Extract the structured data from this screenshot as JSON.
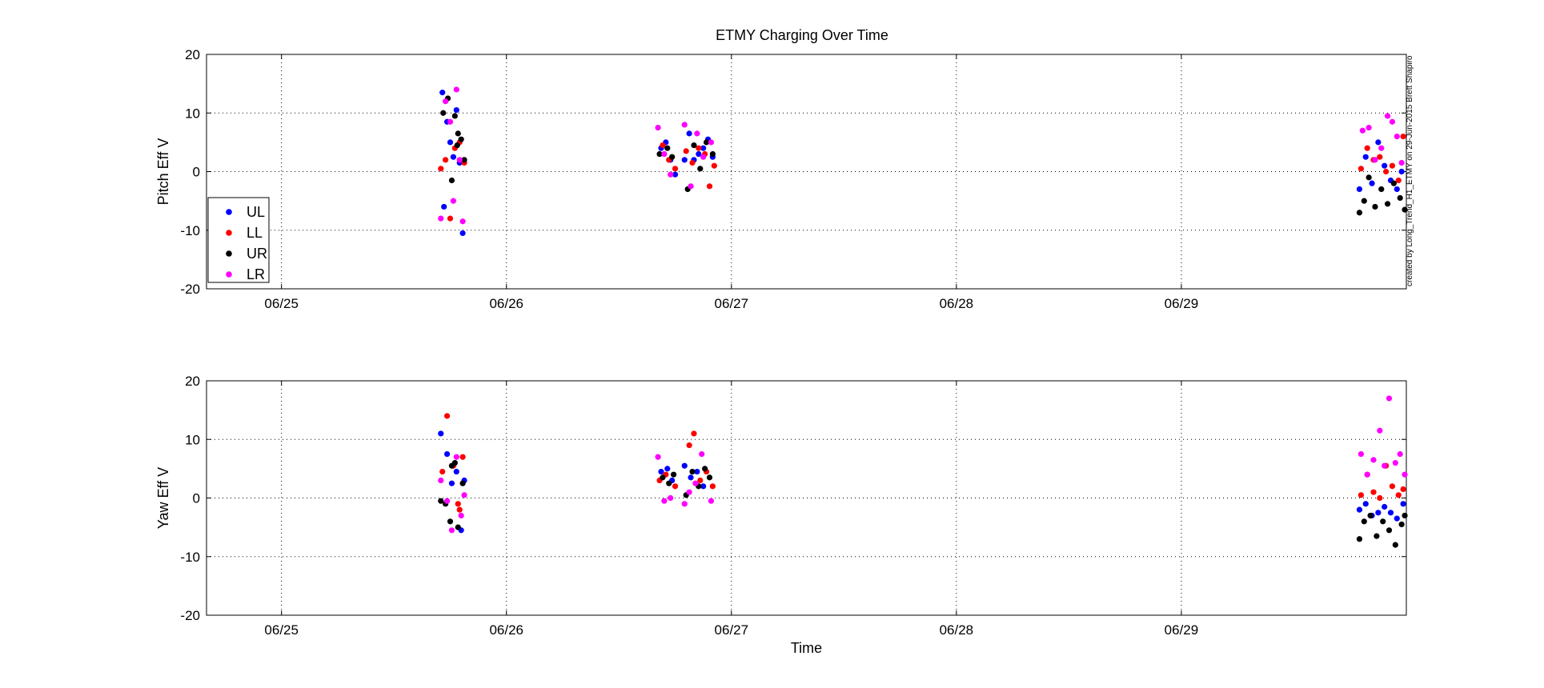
{
  "chart_data": [
    {
      "type": "scatter",
      "title": "ETMY Charging Over Time",
      "xlabel": "",
      "ylabel": "Pitch Eff V",
      "ylim": [
        -20,
        20
      ],
      "yticks": [
        -20,
        -10,
        0,
        10,
        20
      ],
      "xlim": [
        "06/24 16:00",
        "06/30 00:00"
      ],
      "xticks": [
        "06/25",
        "06/26",
        "06/27",
        "06/28",
        "06/29"
      ],
      "grid": true,
      "legend_placement": "lower-left",
      "credit": "created by Long_Trend_H1_ETMY on 29-Jun-2015 Brett Shapiro",
      "series": [
        {
          "name": "UL",
          "color": "#0000ff",
          "points": [
            [
              "06/25 17:10",
              13.5
            ],
            [
              "06/25 17:20",
              -6.0
            ],
            [
              "06/25 17:40",
              8.5
            ],
            [
              "06/25 18:00",
              5.0
            ],
            [
              "06/25 18:20",
              2.5
            ],
            [
              "06/25 18:40",
              10.5
            ],
            [
              "06/25 19:00",
              1.5
            ],
            [
              "06/25 19:20",
              -10.5
            ],
            [
              "06/26 16:30",
              4.0
            ],
            [
              "06/26 17:00",
              5.0
            ],
            [
              "06/26 17:30",
              2.0
            ],
            [
              "06/26 18:00",
              -0.5
            ],
            [
              "06/26 19:00",
              2.0
            ],
            [
              "06/26 19:30",
              6.5
            ],
            [
              "06/26 20:00",
              2.0
            ],
            [
              "06/26 20:30",
              3.0
            ],
            [
              "06/26 21:00",
              4.0
            ],
            [
              "06/26 21:30",
              5.5
            ],
            [
              "06/26 22:00",
              2.5
            ],
            [
              "06/29 19:00",
              -3.0
            ],
            [
              "06/29 19:40",
              2.5
            ],
            [
              "06/29 20:20",
              -2.0
            ],
            [
              "06/29 21:00",
              5.0
            ],
            [
              "06/29 21:40",
              1.0
            ],
            [
              "06/29 22:20",
              -1.5
            ],
            [
              "06/29 23:00",
              -3.0
            ],
            [
              "06/29 23:30",
              0.0
            ]
          ]
        },
        {
          "name": "LL",
          "color": "#ff0000",
          "points": [
            [
              "06/25 17:00",
              0.5
            ],
            [
              "06/25 17:30",
              2.0
            ],
            [
              "06/25 18:00",
              -8.0
            ],
            [
              "06/25 18:30",
              4.0
            ],
            [
              "06/25 19:00",
              5.0
            ],
            [
              "06/25 19:30",
              1.5
            ],
            [
              "06/26 16:40",
              4.5
            ],
            [
              "06/26 17:20",
              2.0
            ],
            [
              "06/26 18:00",
              0.5
            ],
            [
              "06/26 19:10",
              3.5
            ],
            [
              "06/26 19:50",
              1.5
            ],
            [
              "06/26 20:30",
              4.0
            ],
            [
              "06/26 21:10",
              3.0
            ],
            [
              "06/26 21:40",
              -2.5
            ],
            [
              "06/26 22:10",
              1.0
            ],
            [
              "06/29 19:10",
              0.5
            ],
            [
              "06/29 19:50",
              4.0
            ],
            [
              "06/29 20:30",
              2.0
            ],
            [
              "06/29 21:10",
              2.5
            ],
            [
              "06/29 21:50",
              0.0
            ],
            [
              "06/29 22:30",
              1.0
            ],
            [
              "06/29 23:10",
              -1.5
            ],
            [
              "06/29 23:40",
              6.0
            ]
          ]
        },
        {
          "name": "UR",
          "color": "#000000",
          "points": [
            [
              "06/25 17:15",
              10.0
            ],
            [
              "06/25 17:45",
              12.5
            ],
            [
              "06/25 18:10",
              -1.5
            ],
            [
              "06/25 18:30",
              9.5
            ],
            [
              "06/25 18:50",
              6.5
            ],
            [
              "06/25 19:10",
              5.5
            ],
            [
              "06/25 19:30",
              2.0
            ],
            [
              "06/25 18:45",
              4.5
            ],
            [
              "06/26 16:20",
              3.0
            ],
            [
              "06/26 17:10",
              4.0
            ],
            [
              "06/26 17:40",
              2.5
            ],
            [
              "06/26 19:20",
              -3.0
            ],
            [
              "06/26 20:00",
              4.5
            ],
            [
              "06/26 20:40",
              0.5
            ],
            [
              "06/26 21:20",
              5.0
            ],
            [
              "06/26 22:00",
              3.0
            ],
            [
              "06/29 19:00",
              -7.0
            ],
            [
              "06/29 19:30",
              -5.0
            ],
            [
              "06/29 20:00",
              -1.0
            ],
            [
              "06/29 20:40",
              -6.0
            ],
            [
              "06/29 21:20",
              -3.0
            ],
            [
              "06/29 22:00",
              -5.5
            ],
            [
              "06/29 22:40",
              -2.0
            ],
            [
              "06/29 23:20",
              -4.5
            ],
            [
              "06/29 23:50",
              -6.5
            ]
          ]
        },
        {
          "name": "LR",
          "color": "#ff00ff",
          "points": [
            [
              "06/25 17:00",
              -8.0
            ],
            [
              "06/25 17:30",
              12.0
            ],
            [
              "06/25 18:00",
              8.5
            ],
            [
              "06/25 18:20",
              -5.0
            ],
            [
              "06/25 18:40",
              14.0
            ],
            [
              "06/25 19:20",
              -8.5
            ],
            [
              "06/25 19:00",
              2.0
            ],
            [
              "06/26 16:10",
              7.5
            ],
            [
              "06/26 16:50",
              3.0
            ],
            [
              "06/26 17:30",
              -0.5
            ],
            [
              "06/26 19:00",
              8.0
            ],
            [
              "06/26 19:40",
              -2.5
            ],
            [
              "06/26 20:20",
              6.5
            ],
            [
              "06/26 21:00",
              2.5
            ],
            [
              "06/26 21:50",
              5.0
            ],
            [
              "06/29 19:20",
              7.0
            ],
            [
              "06/29 20:00",
              7.5
            ],
            [
              "06/29 20:40",
              2.0
            ],
            [
              "06/29 21:20",
              4.0
            ],
            [
              "06/29 22:00",
              9.5
            ],
            [
              "06/29 22:30",
              8.5
            ],
            [
              "06/29 23:00",
              6.0
            ],
            [
              "06/29 23:30",
              1.5
            ]
          ]
        }
      ]
    },
    {
      "type": "scatter",
      "title": "",
      "xlabel": "Time",
      "ylabel": "Yaw Eff V",
      "ylim": [
        -20,
        20
      ],
      "yticks": [
        -20,
        -10,
        0,
        10,
        20
      ],
      "xlim": [
        "06/24 16:00",
        "06/30 00:00"
      ],
      "xticks": [
        "06/25",
        "06/26",
        "06/27",
        "06/28",
        "06/29"
      ],
      "grid": true,
      "series": [
        {
          "name": "UL",
          "color": "#0000ff",
          "points": [
            [
              "06/25 17:00",
              11.0
            ],
            [
              "06/25 17:40",
              7.5
            ],
            [
              "06/25 18:10",
              2.5
            ],
            [
              "06/25 18:40",
              4.5
            ],
            [
              "06/25 19:10",
              -5.5
            ],
            [
              "06/25 19:30",
              3.0
            ],
            [
              "06/26 16:30",
              4.5
            ],
            [
              "06/26 17:10",
              5.0
            ],
            [
              "06/26 17:40",
              3.0
            ],
            [
              "06/26 19:00",
              5.5
            ],
            [
              "06/26 19:40",
              3.5
            ],
            [
              "06/26 20:20",
              4.5
            ],
            [
              "06/26 21:00",
              2.0
            ],
            [
              "06/29 19:00",
              -2.0
            ],
            [
              "06/29 19:40",
              -1.0
            ],
            [
              "06/29 20:20",
              -3.0
            ],
            [
              "06/29 21:00",
              -2.5
            ],
            [
              "06/29 21:40",
              -1.5
            ],
            [
              "06/29 22:20",
              -2.5
            ],
            [
              "06/29 23:00",
              -3.5
            ],
            [
              "06/29 23:40",
              -1.0
            ]
          ]
        },
        {
          "name": "LL",
          "color": "#ff0000",
          "points": [
            [
              "06/25 17:10",
              4.5
            ],
            [
              "06/25 17:40",
              14.0
            ],
            [
              "06/25 18:20",
              5.5
            ],
            [
              "06/25 18:50",
              -1.0
            ],
            [
              "06/25 19:20",
              7.0
            ],
            [
              "06/25 19:00",
              -2.0
            ],
            [
              "06/26 16:20",
              3.0
            ],
            [
              "06/26 17:00",
              4.0
            ],
            [
              "06/26 18:00",
              2.0
            ],
            [
              "06/26 19:30",
              9.0
            ],
            [
              "06/26 20:00",
              11.0
            ],
            [
              "06/26 20:40",
              3.0
            ],
            [
              "06/26 21:20",
              4.5
            ],
            [
              "06/26 22:00",
              2.0
            ],
            [
              "06/29 19:10",
              0.5
            ],
            [
              "06/29 19:50",
              4.0
            ],
            [
              "06/29 20:30",
              1.0
            ],
            [
              "06/29 21:10",
              0.0
            ],
            [
              "06/29 21:50",
              5.5
            ],
            [
              "06/29 22:30",
              2.0
            ],
            [
              "06/29 23:10",
              0.5
            ],
            [
              "06/29 23:40",
              1.5
            ]
          ]
        },
        {
          "name": "UR",
          "color": "#000000",
          "points": [
            [
              "06/25 17:00",
              -0.5
            ],
            [
              "06/25 17:30",
              -1.0
            ],
            [
              "06/25 18:00",
              -4.0
            ],
            [
              "06/25 18:30",
              6.0
            ],
            [
              "06/25 18:50",
              -5.0
            ],
            [
              "06/25 19:20",
              2.5
            ],
            [
              "06/25 18:10",
              5.5
            ],
            [
              "06/26 16:40",
              3.5
            ],
            [
              "06/26 17:20",
              2.5
            ],
            [
              "06/26 17:50",
              4.0
            ],
            [
              "06/26 19:10",
              0.5
            ],
            [
              "06/26 19:50",
              4.5
            ],
            [
              "06/26 20:30",
              2.0
            ],
            [
              "06/26 21:10",
              5.0
            ],
            [
              "06/26 21:40",
              3.5
            ],
            [
              "06/29 19:00",
              -7.0
            ],
            [
              "06/29 19:30",
              -4.0
            ],
            [
              "06/29 20:10",
              -3.0
            ],
            [
              "06/29 20:50",
              -6.5
            ],
            [
              "06/29 21:30",
              -4.0
            ],
            [
              "06/29 22:10",
              -5.5
            ],
            [
              "06/29 22:50",
              -8.0
            ],
            [
              "06/29 23:30",
              -4.5
            ],
            [
              "06/29 23:50",
              -3.0
            ]
          ]
        },
        {
          "name": "LR",
          "color": "#ff00ff",
          "points": [
            [
              "06/25 17:00",
              3.0
            ],
            [
              "06/25 17:40",
              -0.5
            ],
            [
              "06/25 18:10",
              -5.5
            ],
            [
              "06/25 18:40",
              7.0
            ],
            [
              "06/25 19:10",
              -3.0
            ],
            [
              "06/25 19:30",
              0.5
            ],
            [
              "06/26 16:10",
              7.0
            ],
            [
              "06/26 16:50",
              -0.5
            ],
            [
              "06/26 17:30",
              0.0
            ],
            [
              "06/26 19:00",
              -1.0
            ],
            [
              "06/26 19:30",
              1.0
            ],
            [
              "06/26 20:10",
              2.5
            ],
            [
              "06/26 20:50",
              7.5
            ],
            [
              "06/26 21:50",
              -0.5
            ],
            [
              "06/29 19:10",
              7.5
            ],
            [
              "06/29 19:50",
              4.0
            ],
            [
              "06/29 20:30",
              6.5
            ],
            [
              "06/29 21:10",
              11.5
            ],
            [
              "06/29 21:40",
              5.5
            ],
            [
              "06/29 22:10",
              17.0
            ],
            [
              "06/29 22:50",
              6.0
            ],
            [
              "06/29 23:20",
              7.5
            ],
            [
              "06/29 23:50",
              4.0
            ]
          ]
        }
      ]
    }
  ]
}
